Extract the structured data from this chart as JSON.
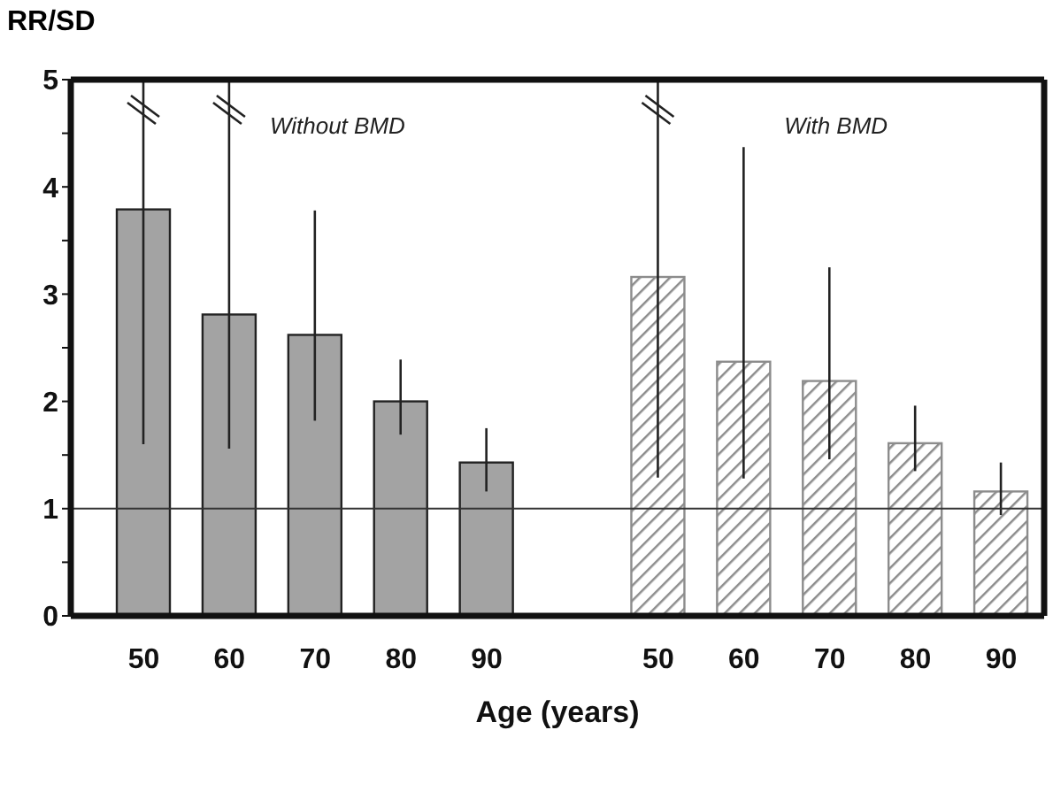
{
  "chart_data": {
    "type": "bar",
    "ylabel": "RR/SD",
    "xlabel": "Age (years)",
    "categories": [
      "50",
      "60",
      "70",
      "80",
      "90",
      null,
      "50",
      "60",
      "70",
      "80",
      "90"
    ],
    "series": [
      {
        "color": "#a3a3a3",
        "values": [
          3.79,
          2.81,
          2.62,
          2.0,
          1.43,
          null,
          null,
          null,
          null,
          null,
          null
        ],
        "errors": [
          [
            1.6,
            5
          ],
          [
            1.56,
            5
          ],
          [
            1.82,
            3.78
          ],
          [
            1.69,
            2.39
          ],
          [
            1.16,
            1.75
          ],
          null,
          null,
          null,
          null,
          null,
          null
        ]
      },
      {
        "color": "#8c8c8c",
        "values": [
          null,
          null,
          null,
          null,
          null,
          null,
          3.16,
          2.37,
          2.19,
          1.61,
          1.16
        ],
        "errors": [
          null,
          null,
          null,
          null,
          null,
          null,
          [
            1.29,
            5
          ],
          [
            1.28,
            4.37
          ],
          [
            1.46,
            3.25
          ],
          [
            1.35,
            1.96
          ],
          [
            0.94,
            1.43
          ]
        ]
      }
    ],
    "ylim": [
      0,
      5
    ],
    "yticks": [
      0,
      {
        "value": 0.5,
        "label": null
      },
      1,
      {
        "value": 1.5,
        "label": null
      },
      2,
      {
        "value": 2.5,
        "label": null
      },
      3,
      {
        "value": 3.5,
        "label": null
      },
      4,
      {
        "value": 4.5,
        "label": null
      },
      5
    ],
    "ref_lines": [
      {
        "axis": "y",
        "value": 1,
        "color": "#333333"
      }
    ],
    "annotations": [
      "Without BMD",
      "With BMD"
    ],
    "grid": false
  }
}
